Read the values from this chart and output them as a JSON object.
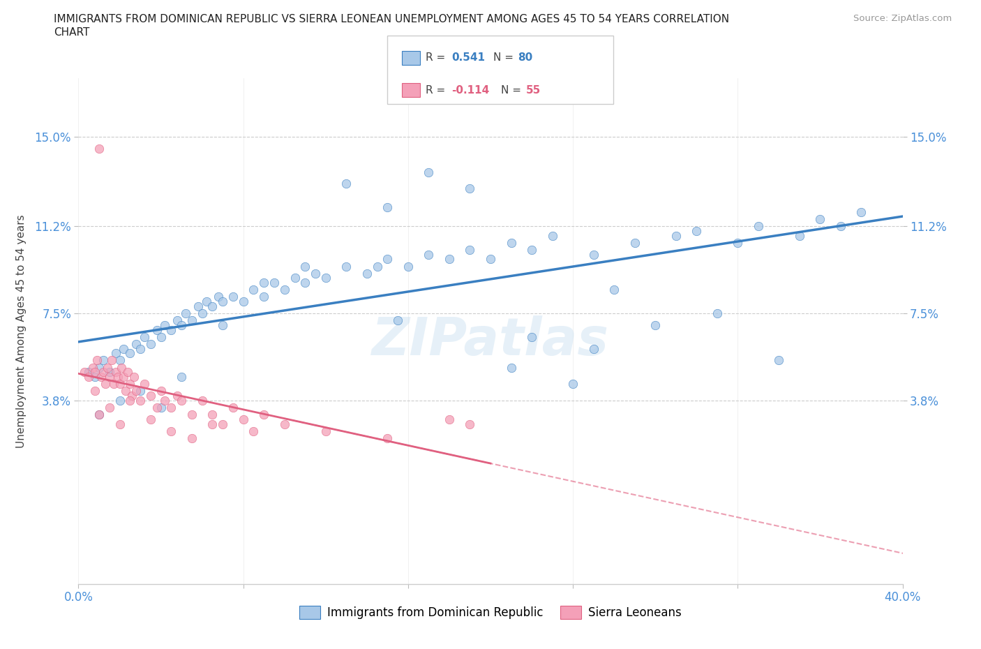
{
  "title_line1": "IMMIGRANTS FROM DOMINICAN REPUBLIC VS SIERRA LEONEAN UNEMPLOYMENT AMONG AGES 45 TO 54 YEARS CORRELATION",
  "title_line2": "CHART",
  "source_text": "Source: ZipAtlas.com",
  "ylabel": "Unemployment Among Ages 45 to 54 years",
  "xlim": [
    0.0,
    0.4
  ],
  "ylim": [
    -0.04,
    0.175
  ],
  "yticks": [
    0.038,
    0.075,
    0.112,
    0.15
  ],
  "ytick_labels": [
    "3.8%",
    "7.5%",
    "11.2%",
    "15.0%"
  ],
  "xticks": [
    0.0,
    0.08,
    0.16,
    0.24,
    0.32,
    0.4
  ],
  "xtick_labels": [
    "0.0%",
    "",
    "",
    "",
    "",
    "40.0%"
  ],
  "color_blue": "#a8c8e8",
  "color_pink": "#f4a0b8",
  "color_blue_line": "#3a7fc1",
  "color_pink_line": "#e06080",
  "color_axis": "#4a90d9",
  "watermark": "ZIPatlas",
  "background_color": "#ffffff",
  "grid_color": "#cccccc",
  "blue_x": [
    0.005,
    0.008,
    0.01,
    0.012,
    0.015,
    0.018,
    0.02,
    0.022,
    0.025,
    0.028,
    0.03,
    0.032,
    0.035,
    0.038,
    0.04,
    0.042,
    0.045,
    0.048,
    0.05,
    0.052,
    0.055,
    0.058,
    0.06,
    0.062,
    0.065,
    0.068,
    0.07,
    0.075,
    0.08,
    0.085,
    0.09,
    0.095,
    0.1,
    0.105,
    0.11,
    0.115,
    0.12,
    0.13,
    0.14,
    0.15,
    0.16,
    0.17,
    0.18,
    0.19,
    0.2,
    0.21,
    0.22,
    0.23,
    0.25,
    0.27,
    0.29,
    0.3,
    0.32,
    0.33,
    0.35,
    0.36,
    0.37,
    0.38,
    0.25,
    0.28,
    0.22,
    0.31,
    0.34,
    0.26,
    0.24,
    0.19,
    0.21,
    0.17,
    0.15,
    0.13,
    0.11,
    0.09,
    0.07,
    0.05,
    0.04,
    0.03,
    0.02,
    0.01,
    0.155,
    0.145
  ],
  "blue_y": [
    0.05,
    0.048,
    0.052,
    0.055,
    0.05,
    0.058,
    0.055,
    0.06,
    0.058,
    0.062,
    0.06,
    0.065,
    0.062,
    0.068,
    0.065,
    0.07,
    0.068,
    0.072,
    0.07,
    0.075,
    0.072,
    0.078,
    0.075,
    0.08,
    0.078,
    0.082,
    0.08,
    0.082,
    0.08,
    0.085,
    0.082,
    0.088,
    0.085,
    0.09,
    0.088,
    0.092,
    0.09,
    0.095,
    0.092,
    0.098,
    0.095,
    0.1,
    0.098,
    0.102,
    0.098,
    0.105,
    0.102,
    0.108,
    0.1,
    0.105,
    0.108,
    0.11,
    0.105,
    0.112,
    0.108,
    0.115,
    0.112,
    0.118,
    0.06,
    0.07,
    0.065,
    0.075,
    0.055,
    0.085,
    0.045,
    0.128,
    0.052,
    0.135,
    0.12,
    0.13,
    0.095,
    0.088,
    0.07,
    0.048,
    0.035,
    0.042,
    0.038,
    0.032,
    0.072,
    0.095
  ],
  "pink_x": [
    0.003,
    0.005,
    0.007,
    0.008,
    0.009,
    0.01,
    0.011,
    0.012,
    0.013,
    0.014,
    0.015,
    0.016,
    0.017,
    0.018,
    0.019,
    0.02,
    0.021,
    0.022,
    0.023,
    0.024,
    0.025,
    0.026,
    0.027,
    0.028,
    0.03,
    0.032,
    0.035,
    0.038,
    0.04,
    0.042,
    0.045,
    0.048,
    0.05,
    0.055,
    0.06,
    0.065,
    0.07,
    0.075,
    0.08,
    0.085,
    0.09,
    0.1,
    0.12,
    0.15,
    0.18,
    0.19,
    0.008,
    0.015,
    0.025,
    0.035,
    0.045,
    0.055,
    0.065,
    0.01,
    0.02
  ],
  "pink_y": [
    0.05,
    0.048,
    0.052,
    0.05,
    0.055,
    0.145,
    0.048,
    0.05,
    0.045,
    0.052,
    0.048,
    0.055,
    0.045,
    0.05,
    0.048,
    0.045,
    0.052,
    0.048,
    0.042,
    0.05,
    0.045,
    0.04,
    0.048,
    0.042,
    0.038,
    0.045,
    0.04,
    0.035,
    0.042,
    0.038,
    0.035,
    0.04,
    0.038,
    0.032,
    0.038,
    0.032,
    0.028,
    0.035,
    0.03,
    0.025,
    0.032,
    0.028,
    0.025,
    0.022,
    0.03,
    0.028,
    0.042,
    0.035,
    0.038,
    0.03,
    0.025,
    0.022,
    0.028,
    0.032,
    0.028
  ]
}
